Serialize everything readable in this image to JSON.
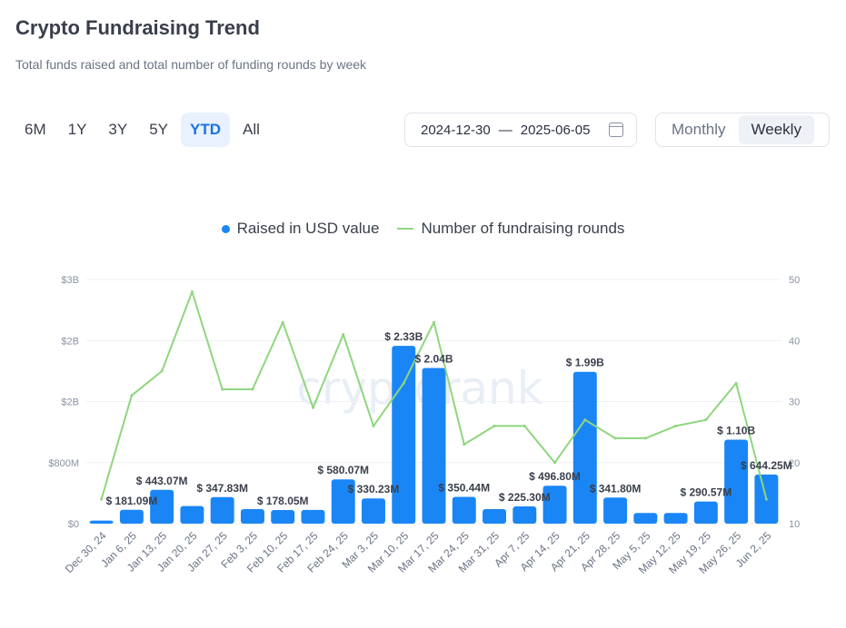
{
  "header": {
    "title": "Crypto Fundraising Trend",
    "subtitle": "Total funds raised and total number of funding rounds by week"
  },
  "ranges": [
    {
      "label": "6M",
      "active": false
    },
    {
      "label": "1Y",
      "active": false
    },
    {
      "label": "3Y",
      "active": false
    },
    {
      "label": "5Y",
      "active": false
    },
    {
      "label": "YTD",
      "active": true
    },
    {
      "label": "All",
      "active": false
    }
  ],
  "date_range": {
    "start": "2024-12-30",
    "separator": "—",
    "end": "2025-06-05"
  },
  "period": {
    "options": [
      "Monthly",
      "Weekly"
    ],
    "selected": "Weekly"
  },
  "watermark": "cryptorank",
  "colors": {
    "bar": "#1a86f5",
    "line": "#8fd67e",
    "active": "#1a73e8"
  },
  "chart_data": {
    "type": "bar",
    "categories": [
      "Dec 30, 24",
      "Jan 6, 25",
      "Jan 13, 25",
      "Jan 20, 25",
      "Jan 27, 25",
      "Feb 3, 25",
      "Feb 10, 25",
      "Feb 17, 25",
      "Feb 24, 25",
      "Mar 3, 25",
      "Mar 10, 25",
      "Mar 17, 25",
      "Mar 24, 25",
      "Mar 31, 25",
      "Apr 7, 25",
      "Apr 14, 25",
      "Apr 21, 25",
      "Apr 28, 25",
      "May 5, 25",
      "May 12, 25",
      "May 19, 25",
      "May 26, 25",
      "Jun 2, 25"
    ],
    "series": [
      {
        "name": "Raised in USD value",
        "axis": "left",
        "type": "bar",
        "values": [
          40000000,
          181090000,
          443070000,
          230000000,
          347830000,
          190000000,
          178050000,
          180000000,
          580070000,
          330230000,
          2330000000,
          2040000000,
          350440000,
          190000000,
          225300000,
          496800000,
          1990000000,
          341800000,
          140000000,
          140000000,
          290570000,
          1100000000,
          644250000
        ],
        "labels": [
          "",
          "$ 181.09M",
          "$ 443.07M",
          "",
          "$ 347.83M",
          "",
          "$ 178.05M",
          "",
          "$ 580.07M",
          "$ 330.23M",
          "$ 2.33B",
          "$ 2.04B",
          "$ 350.44M",
          "",
          "$ 225.30M",
          "$ 496.80M",
          "$ 1.99B",
          "$ 341.80M",
          "",
          "",
          "$ 290.57M",
          "$ 1.10B",
          "$ 644.25M"
        ]
      },
      {
        "name": "Number of fundraising rounds",
        "axis": "right",
        "type": "line",
        "values": [
          14,
          31,
          35,
          48,
          32,
          32,
          43,
          29,
          41,
          26,
          33,
          43,
          23,
          26,
          26,
          20,
          27,
          24,
          24,
          26,
          27,
          33,
          14
        ]
      }
    ],
    "y_left": {
      "ticks": [
        0,
        800000000,
        1600000000,
        2400000000,
        3200000000
      ],
      "tick_labels": [
        "$0",
        "$800M",
        "$2B",
        "$2B",
        "$3B"
      ],
      "range": [
        0,
        3200000000
      ]
    },
    "y_right": {
      "ticks": [
        10,
        20,
        30,
        40,
        50
      ],
      "tick_labels": [
        "10",
        "20",
        "30",
        "40",
        "50"
      ],
      "range": [
        10,
        50
      ]
    },
    "grid": true,
    "legend_position": "top-center"
  }
}
